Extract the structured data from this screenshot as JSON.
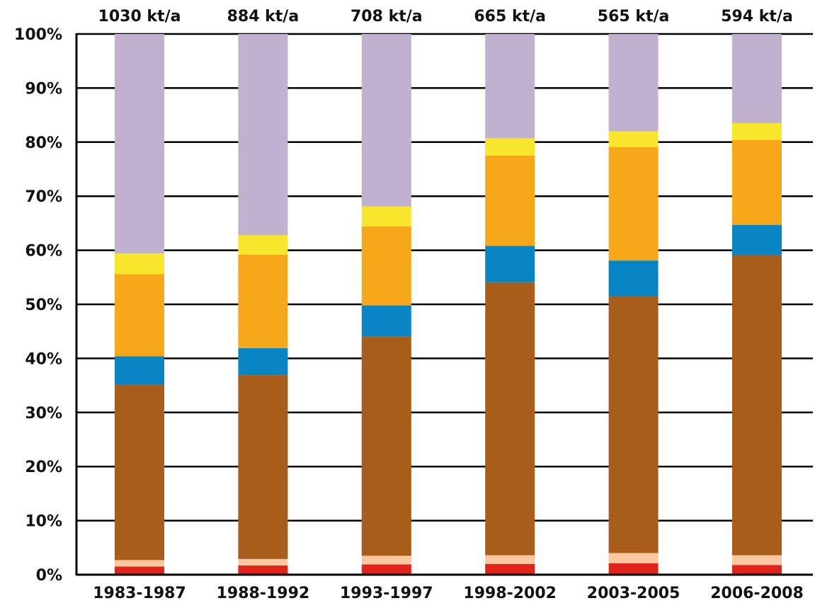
{
  "chart_data": {
    "type": "bar",
    "stacked": true,
    "categories": [
      "1983-1987",
      "1988-1992",
      "1993-1997",
      "1998-2002",
      "2003-2005",
      "2006-2008"
    ],
    "top_labels": [
      "1030 kt/a",
      "884 kt/a",
      "708 kt/a",
      "665 kt/a",
      "565 kt/a",
      "594 kt/a"
    ],
    "y_ticks": [
      "0%",
      "10%",
      "20%",
      "30%",
      "40%",
      "50%",
      "60%",
      "70%",
      "80%",
      "90%",
      "100%"
    ],
    "ylim": [
      0,
      100
    ],
    "grid": true,
    "legend": "none",
    "series": [
      {
        "color": "#e2231a",
        "values": [
          1.5,
          1.7,
          1.9,
          2.0,
          2.1,
          1.8
        ]
      },
      {
        "color": "#f9c8a0",
        "values": [
          1.2,
          1.2,
          1.6,
          1.6,
          1.9,
          1.8
        ]
      },
      {
        "color": "#a85d1b",
        "values": [
          32.5,
          34.0,
          40.5,
          50.5,
          47.5,
          55.5
        ]
      },
      {
        "color": "#0a85c3",
        "values": [
          5.2,
          5.0,
          5.8,
          6.7,
          6.6,
          5.6
        ]
      },
      {
        "color": "#f6a81a",
        "values": [
          15.2,
          17.3,
          14.6,
          16.7,
          21.0,
          15.7
        ]
      },
      {
        "color": "#f8e62c",
        "values": [
          3.8,
          3.6,
          3.7,
          3.2,
          2.9,
          3.1
        ]
      },
      {
        "color": "#c0b1cf",
        "values": [
          40.6,
          37.2,
          31.9,
          19.3,
          18.0,
          16.5
        ]
      }
    ]
  }
}
